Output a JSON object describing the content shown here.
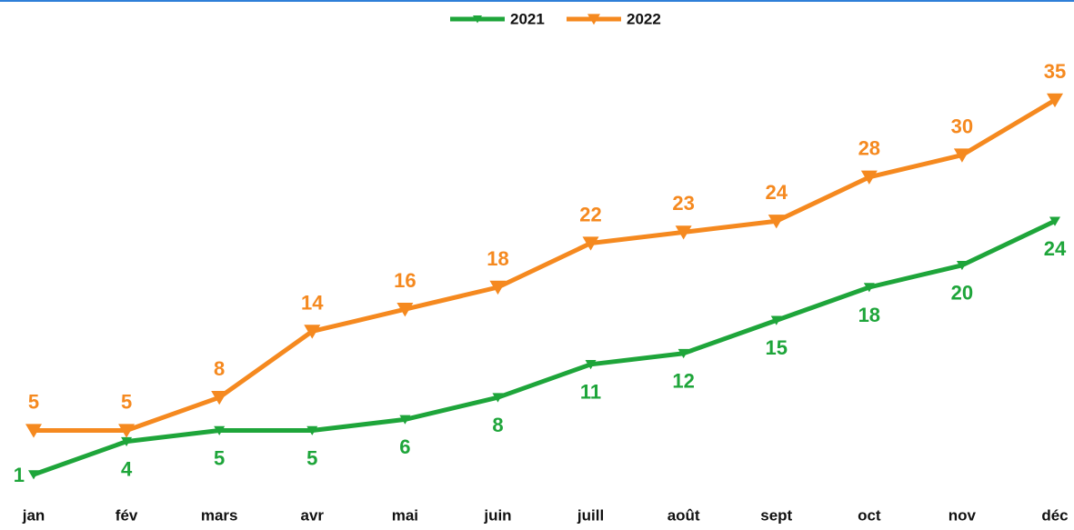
{
  "chart_data": {
    "type": "line",
    "categories": [
      "jan",
      "fév",
      "mars",
      "avr",
      "mai",
      "juin",
      "juill",
      "août",
      "sept",
      "oct",
      "nov",
      "déc"
    ],
    "series": [
      {
        "name": "2021",
        "color": "#1ea53a",
        "values": [
          1,
          4,
          5,
          5,
          6,
          8,
          11,
          12,
          15,
          18,
          20,
          24
        ]
      },
      {
        "name": "2022",
        "color": "#f5891f",
        "values": [
          5,
          5,
          8,
          14,
          16,
          18,
          22,
          23,
          24,
          28,
          30,
          35
        ]
      }
    ],
    "legend": "top"
  }
}
